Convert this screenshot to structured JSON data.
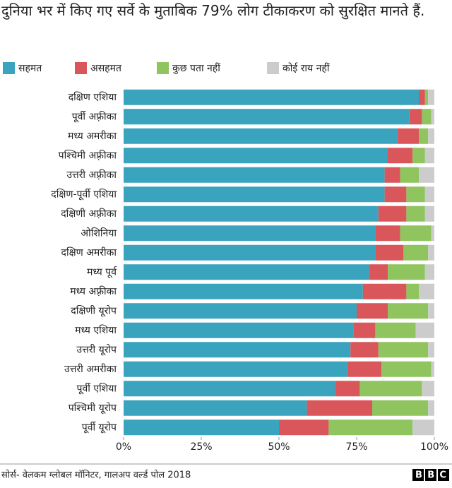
{
  "chart_data": {
    "type": "stacked-bar-horizontal",
    "title": "दुनिया भर में किए गए सर्वे के मुताबिक 79% लोग टीकाकरण को सुरक्षित मानते हैं.",
    "categories": [
      "दक्षिण एशिया",
      "पूर्वी अफ़्रीका",
      "मध्य अमरीका",
      "पश्चिमी अफ़्रीका",
      "उत्तरी अफ़्रीका",
      "दक्षिण-पूर्वी एशिया",
      "दक्षिणी अफ़्रीका",
      "ओशिनिया",
      "दक्षिण अमरीका",
      "मध्य पूर्व",
      "मध्य अफ़्रीका",
      "दक्षिणी यूरोप",
      "मध्य एशिया",
      "उत्तरी यूरोप",
      "उत्तरी अमरीका",
      "पूर्वी एशिया",
      "पश्चिमी यूरोप",
      "पूर्वी यूरोप"
    ],
    "series": [
      {
        "name": "सहमत",
        "color": "#3aa3bd",
        "values": [
          95,
          92,
          88,
          85,
          84,
          84,
          82,
          81,
          81,
          79,
          77,
          75,
          74,
          73,
          72,
          68,
          59,
          50
        ]
      },
      {
        "name": "असहमत",
        "color": "#d9575a",
        "values": [
          2,
          4,
          7,
          8,
          5,
          7,
          9,
          8,
          9,
          6,
          14,
          10,
          7,
          9,
          11,
          8,
          21,
          16
        ]
      },
      {
        "name": "कुछ पता नहीं",
        "color": "#8fc45f",
        "values": [
          1,
          3,
          3,
          4,
          6,
          6,
          6,
          10,
          8,
          12,
          4,
          13,
          13,
          16,
          16,
          20,
          18,
          27
        ]
      },
      {
        "name": "कोई राय नहीं",
        "color": "#cccccc",
        "values": [
          2,
          1,
          2,
          3,
          5,
          3,
          3,
          1,
          2,
          3,
          5,
          2,
          6,
          2,
          1,
          4,
          2,
          7
        ]
      }
    ],
    "xlim": [
      0,
      100
    ],
    "xticks": [
      {
        "value": 0,
        "label": "0%"
      },
      {
        "value": 25,
        "label": "25%"
      },
      {
        "value": 50,
        "label": "50%"
      },
      {
        "value": 75,
        "label": "75%"
      },
      {
        "value": 100,
        "label": "100%"
      }
    ],
    "source": "सोर्स- वेलकम ग्लोबल मॉनिटर, गालअप वर्ल्ड पोल 2018",
    "logo": "BBC"
  }
}
